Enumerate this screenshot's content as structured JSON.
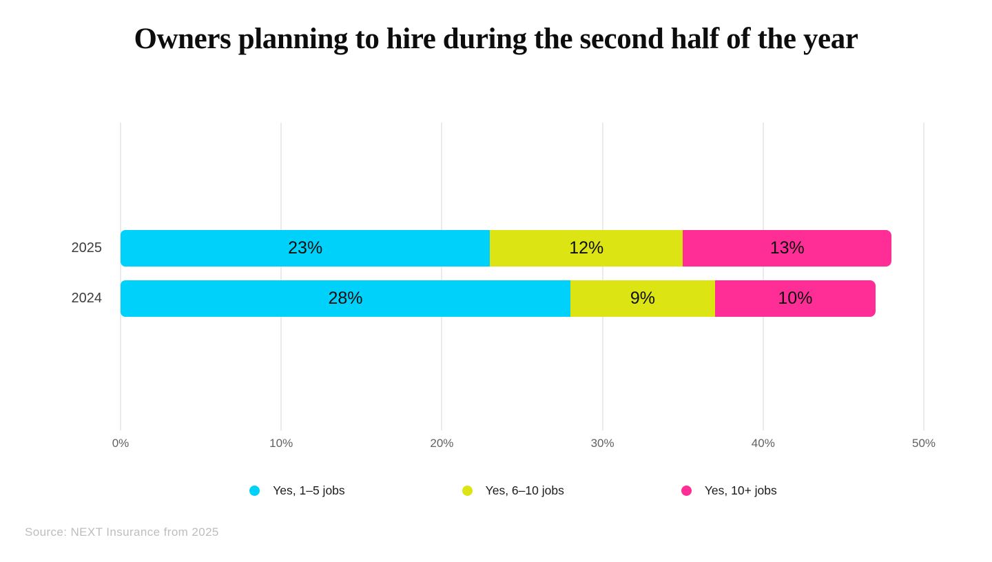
{
  "title": "Owners planning to hire during the second half of the year",
  "source_note": "Source: NEXT Insurance from 2025",
  "chart_data": {
    "type": "bar",
    "orientation": "horizontal-stacked",
    "title": "Owners planning to hire during the second half of the year",
    "categories": [
      "2025",
      "2024"
    ],
    "series": [
      {
        "name": "Yes, 1–5 jobs",
        "color": "#00D1FB",
        "values": [
          23,
          28
        ]
      },
      {
        "name": "Yes, 6–10 jobs",
        "color": "#DCE414",
        "values": [
          12,
          9
        ]
      },
      {
        "name": "Yes, 10+ jobs",
        "color": "#FF2D96",
        "values": [
          13,
          10
        ]
      }
    ],
    "value_suffix": "%",
    "xlim": [
      0,
      50
    ],
    "x_ticks": [
      {
        "value": 0,
        "label": "0%"
      },
      {
        "value": 10,
        "label": "10%"
      },
      {
        "value": 20,
        "label": "20%"
      },
      {
        "value": 30,
        "label": "30%"
      },
      {
        "value": 40,
        "label": "40%"
      },
      {
        "value": 50,
        "label": "50%"
      }
    ],
    "grid": true,
    "legend_position": "bottom",
    "background": "#ffffff",
    "source": "Source: NEXT Insurance from 2025"
  }
}
